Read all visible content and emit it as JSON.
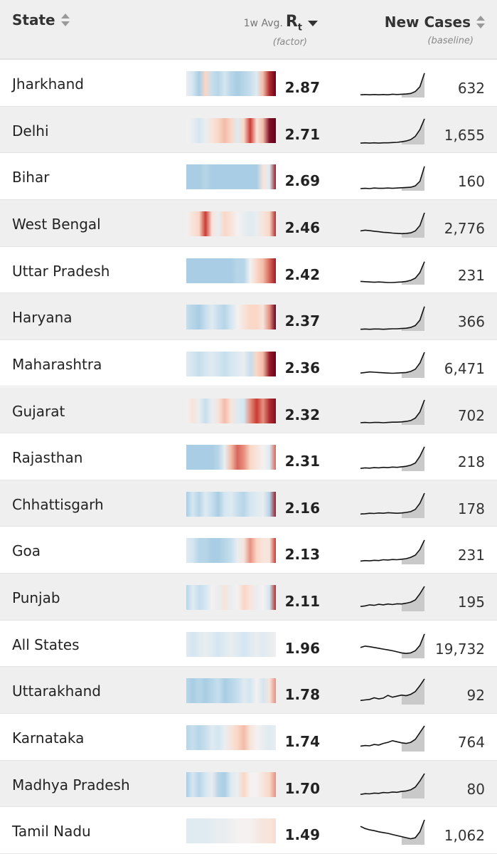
{
  "header": {
    "state_label": "State",
    "rt_prefix": "1w Avg.",
    "rt_main": "R",
    "rt_sub": "t",
    "rt_note": "(factor)",
    "cases_label": "New Cases",
    "cases_note": "(baseline)"
  },
  "colors": {
    "deep_red": "#67001f",
    "red": "#ca3b33",
    "light_red": "#fbd0bc",
    "neutral": "#f4f1f0",
    "light_blue": "#d4e6f1",
    "blue": "#a9cde4",
    "spark_fill": "#c9c9c9",
    "spark_line": "#111111"
  },
  "rows": [
    {
      "state": "Jharkhand",
      "rt": "2.87",
      "cases": "632",
      "strip": [
        0.1,
        0.3,
        0.6,
        -0.2,
        0.4,
        0.5,
        0.3,
        0.5,
        0.7,
        0.5,
        0.4,
        0.2,
        -0.3,
        -0.7,
        -1
      ],
      "trend": [
        10,
        11,
        10,
        11,
        10,
        11,
        10,
        12,
        11,
        12,
        13,
        15,
        22,
        40,
        90
      ]
    },
    {
      "state": "Delhi",
      "rt": "2.71",
      "cases": "1,655",
      "strip": [
        0,
        0.1,
        0.3,
        0.1,
        -0.1,
        -0.2,
        -0.3,
        -0.2,
        0.2,
        -0.2,
        -0.6,
        -0.1,
        -0.3,
        -0.9,
        -1
      ],
      "trend": [
        5,
        6,
        5,
        6,
        5,
        6,
        6,
        7,
        8,
        10,
        13,
        18,
        30,
        55,
        95
      ]
    },
    {
      "state": "Bihar",
      "rt": "2.69",
      "cases": "160",
      "strip": [
        0.6,
        0.6,
        0.6,
        0.5,
        0.6,
        0.6,
        0.6,
        0.6,
        0.6,
        0.6,
        0.6,
        0.6,
        -0.1,
        0.2,
        -0.8
      ],
      "trend": [
        8,
        9,
        8,
        10,
        9,
        9,
        10,
        9,
        10,
        11,
        12,
        13,
        18,
        35,
        90
      ]
    },
    {
      "state": "West Bengal",
      "rt": "2.46",
      "cases": "2,776",
      "strip": [
        0,
        -0.1,
        -0.2,
        -0.6,
        -0.1,
        0.1,
        -0.2,
        -0.1,
        0,
        0.1,
        0.2,
        0.1,
        -0.1,
        -0.2,
        -0.7
      ],
      "trend": [
        25,
        28,
        26,
        24,
        22,
        20,
        19,
        17,
        16,
        15,
        16,
        18,
        25,
        45,
        92
      ]
    },
    {
      "state": "Uttar Pradesh",
      "rt": "2.42",
      "cases": "231",
      "strip": [
        0.6,
        0.6,
        0.6,
        0.6,
        0.6,
        0.6,
        0.6,
        0.6,
        0.5,
        0.5,
        0,
        -0.2,
        -0.3,
        -0.5,
        -0.8
      ],
      "trend": [
        12,
        11,
        10,
        9,
        10,
        9,
        8,
        8,
        9,
        10,
        12,
        16,
        24,
        45,
        85
      ]
    },
    {
      "state": "Haryana",
      "rt": "2.37",
      "cases": "366",
      "strip": [
        0.4,
        0.5,
        0.6,
        0.4,
        0.2,
        0.4,
        0.5,
        0.3,
        0,
        -0.1,
        -0.2,
        -0.2,
        -0.1,
        -0.4,
        -1
      ],
      "trend": [
        6,
        7,
        6,
        7,
        7,
        6,
        7,
        8,
        8,
        9,
        10,
        13,
        20,
        40,
        90
      ]
    },
    {
      "state": "Maharashtra",
      "rt": "2.36",
      "cases": "6,471",
      "strip": [
        0.2,
        0.3,
        0.4,
        0.3,
        0.2,
        0.3,
        0.4,
        0.3,
        0.2,
        0.1,
        0.4,
        -0.2,
        -0.3,
        -0.8,
        -1
      ],
      "trend": [
        18,
        20,
        22,
        21,
        20,
        19,
        18,
        17,
        18,
        19,
        20,
        24,
        32,
        55,
        95
      ]
    },
    {
      "state": "Gujarat",
      "rt": "2.32",
      "cases": "702",
      "strip": [
        0,
        -0.1,
        0.1,
        0.4,
        0.1,
        -0.1,
        -0.3,
        -0.1,
        0.2,
        0.3,
        -0.4,
        -0.6,
        -0.4,
        -0.7,
        -0.9
      ],
      "trend": [
        8,
        9,
        8,
        9,
        9,
        8,
        9,
        10,
        10,
        11,
        13,
        16,
        25,
        48,
        92
      ]
    },
    {
      "state": "Rajasthan",
      "rt": "2.31",
      "cases": "218",
      "strip": [
        0.6,
        0.6,
        0.6,
        0.6,
        0.6,
        0.5,
        0.1,
        -0.3,
        -0.5,
        -0.4,
        -0.2,
        -0.1,
        0,
        0.2,
        -0.5
      ],
      "trend": [
        10,
        12,
        11,
        13,
        12,
        14,
        13,
        15,
        14,
        16,
        18,
        22,
        30,
        55,
        90
      ]
    },
    {
      "state": "Chhattisgarh",
      "rt": "2.16",
      "cases": "178",
      "strip": [
        0.6,
        0.3,
        0.5,
        0.2,
        0.4,
        0.6,
        0.3,
        0.2,
        0.4,
        0.5,
        0.3,
        0.2,
        0.1,
        0.5,
        -0.8
      ],
      "trend": [
        15,
        16,
        18,
        17,
        19,
        18,
        20,
        19,
        18,
        19,
        21,
        24,
        32,
        55,
        92
      ]
    },
    {
      "state": "Goa",
      "rt": "2.13",
      "cases": "231",
      "strip": [
        0.2,
        0.3,
        0.5,
        0.5,
        0.6,
        0.6,
        0.5,
        0.4,
        0.1,
        -0.1,
        -0.4,
        -0.2,
        -0.1,
        -0.1,
        -0.6
      ],
      "trend": [
        12,
        14,
        13,
        15,
        14,
        17,
        16,
        18,
        17,
        19,
        21,
        26,
        34,
        55,
        90
      ]
    },
    {
      "state": "Punjab",
      "rt": "2.11",
      "cases": "195",
      "strip": [
        0.5,
        0.2,
        0.4,
        0.3,
        0,
        0.1,
        -0.1,
        0.1,
        0,
        -0.2,
        -0.1,
        0.1,
        0,
        0.3,
        -0.7
      ],
      "trend": [
        18,
        20,
        24,
        22,
        26,
        24,
        27,
        25,
        28,
        27,
        30,
        34,
        42,
        65,
        92
      ]
    },
    {
      "state": "All States",
      "rt": "1.96",
      "cases": "19,732",
      "strip": [
        0.2,
        0.3,
        0.2,
        0.1,
        0.2,
        0.3,
        0.2,
        0.1,
        0.2,
        0.3,
        0.2,
        0.1,
        0.2,
        0.1,
        0.05
      ],
      "trend": [
        40,
        45,
        43,
        40,
        37,
        34,
        31,
        28,
        24,
        20,
        18,
        20,
        28,
        48,
        90
      ]
    },
    {
      "state": "Uttarakhand",
      "rt": "1.78",
      "cases": "92",
      "strip": [
        0.5,
        0.6,
        0.5,
        0.6,
        0.5,
        0.4,
        0.6,
        0.5,
        0.4,
        0.2,
        0.3,
        0,
        0.3,
        -0.1,
        -0.4
      ],
      "trend": [
        15,
        17,
        19,
        25,
        21,
        24,
        34,
        27,
        31,
        35,
        33,
        38,
        48,
        70,
        95
      ]
    },
    {
      "state": "Karnataka",
      "rt": "1.74",
      "cases": "764",
      "strip": [
        0.5,
        0.4,
        0.5,
        0.4,
        0.2,
        0.3,
        0.1,
        -0.1,
        -0.2,
        -0.3,
        -0.1,
        0,
        0.1,
        0.2,
        0.1
      ],
      "trend": [
        20,
        22,
        21,
        26,
        24,
        30,
        34,
        40,
        36,
        32,
        30,
        34,
        45,
        70,
        95
      ]
    },
    {
      "state": "Madhya Pradesh",
      "rt": "1.70",
      "cases": "80",
      "strip": [
        0.6,
        0.3,
        0.5,
        0.3,
        0.1,
        0.5,
        0.6,
        0.2,
        0.1,
        -0.2,
        0,
        0,
        -0.1,
        -0.2,
        -0.4
      ],
      "trend": [
        15,
        18,
        17,
        20,
        19,
        22,
        21,
        24,
        23,
        26,
        28,
        32,
        42,
        65,
        92
      ]
    },
    {
      "state": "Tamil Nadu",
      "rt": "1.49",
      "cases": "1,062",
      "strip": [
        0.2,
        0.2,
        0.2,
        0.2,
        0.15,
        0.1,
        0.1,
        0.05,
        0,
        0,
        0,
        -0.05,
        -0.1,
        -0.1,
        -0.15
      ],
      "trend": [
        68,
        60,
        55,
        52,
        48,
        45,
        42,
        38,
        34,
        30,
        26,
        22,
        26,
        48,
        92
      ]
    }
  ]
}
